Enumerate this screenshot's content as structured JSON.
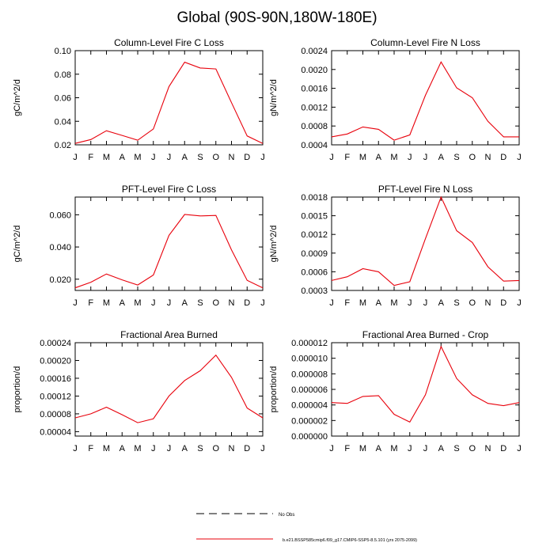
{
  "figure": {
    "title": "Global (90S-90N,180W-180E)",
    "legend": {
      "obs_label": "No Obs",
      "model_label": "b.e21.BSSP585cmip6.f09_g17.CMIP6-SSP5-8.5.101 (yrs 2075-2099)",
      "line_color": "#e8000b"
    }
  },
  "chart_data": [
    {
      "type": "line",
      "title": "Column-Level Fire C Loss",
      "ylabel": "gC/m^2/d",
      "categories": [
        "J",
        "F",
        "M",
        "A",
        "M",
        "J",
        "J",
        "A",
        "S",
        "O",
        "N",
        "D",
        "J"
      ],
      "ylim": [
        0.02,
        0.1
      ],
      "yticks": [
        0.02,
        0.04,
        0.06,
        0.08,
        0.1
      ],
      "ytick_labels": [
        "0.02",
        "0.04",
        "0.06",
        "0.08",
        "0.10"
      ],
      "series": [
        {
          "values": [
            0.0212,
            0.0245,
            0.032,
            0.028,
            0.0239,
            0.0335,
            0.0695,
            0.0902,
            0.0853,
            0.0845,
            0.0558,
            0.0275,
            0.0212
          ],
          "color": "#e8000b"
        }
      ]
    },
    {
      "type": "line",
      "title": "Column-Level Fire N Loss",
      "ylabel": "gN/m^2/d",
      "categories": [
        "J",
        "F",
        "M",
        "A",
        "M",
        "J",
        "J",
        "A",
        "S",
        "O",
        "N",
        "D",
        "J"
      ],
      "ylim": [
        0.0004,
        0.0024
      ],
      "yticks": [
        0.0004,
        0.0008,
        0.0012,
        0.0016,
        0.002,
        0.0024
      ],
      "ytick_labels": [
        "0.0004",
        "0.0008",
        "0.0012",
        "0.0016",
        "0.0020",
        "0.0024"
      ],
      "series": [
        {
          "values": [
            0.00057,
            0.00063,
            0.00078,
            0.00073,
            0.0005,
            0.00061,
            0.00145,
            0.00216,
            0.00161,
            0.0014,
            0.0009,
            0.00057,
            0.00057
          ],
          "color": "#e8000b"
        }
      ]
    },
    {
      "type": "line",
      "title": "PFT-Level Fire C Loss",
      "ylabel": "gC/m^2/d",
      "categories": [
        "J",
        "F",
        "M",
        "A",
        "M",
        "J",
        "J",
        "A",
        "S",
        "O",
        "N",
        "D",
        "J"
      ],
      "ylim": [
        0.013,
        0.071
      ],
      "yticks": [
        0.02,
        0.04,
        0.06
      ],
      "ytick_labels": [
        "0.020",
        "0.040",
        "0.060"
      ],
      "series": [
        {
          "values": [
            0.0146,
            0.0181,
            0.0232,
            0.0196,
            0.0164,
            0.0226,
            0.0472,
            0.0602,
            0.0593,
            0.0596,
            0.0382,
            0.0193,
            0.0146
          ],
          "color": "#e8000b"
        }
      ]
    },
    {
      "type": "line",
      "title": "PFT-Level Fire N Loss",
      "ylabel": "gN/m^2/d",
      "categories": [
        "J",
        "F",
        "M",
        "A",
        "M",
        "J",
        "J",
        "A",
        "S",
        "O",
        "N",
        "D",
        "J"
      ],
      "ylim": [
        0.0003,
        0.0018
      ],
      "yticks": [
        0.0003,
        0.0006,
        0.0009,
        0.0012,
        0.0015,
        0.0018
      ],
      "ytick_labels": [
        "0.0003",
        "0.0006",
        "0.0009",
        "0.0012",
        "0.0015",
        "0.0018"
      ],
      "series": [
        {
          "values": [
            0.00046,
            0.00052,
            0.00065,
            0.0006,
            0.00038,
            0.00044,
            0.00113,
            0.0018,
            0.00126,
            0.00107,
            0.00068,
            0.00045,
            0.00046
          ],
          "color": "#e8000b"
        }
      ]
    },
    {
      "type": "line",
      "title": "Fractional Area Burned",
      "ylabel": "proportion/d",
      "categories": [
        "J",
        "F",
        "M",
        "A",
        "M",
        "J",
        "J",
        "A",
        "S",
        "O",
        "N",
        "D",
        "J"
      ],
      "ylim": [
        3e-05,
        0.00024
      ],
      "yticks": [
        4e-05,
        8e-05,
        0.00012,
        0.00016,
        0.0002,
        0.00024
      ],
      "ytick_labels": [
        "0.00004",
        "0.00008",
        "0.00012",
        "0.00016",
        "0.00020",
        "0.00024"
      ],
      "series": [
        {
          "values": [
            7.1e-05,
            8e-05,
            9.5e-05,
            7.8e-05,
            6e-05,
            6.9e-05,
            0.00012,
            0.000155,
            0.000177,
            0.000212,
            0.000162,
            9.3e-05,
            7.1e-05
          ],
          "color": "#e8000b"
        }
      ]
    },
    {
      "type": "line",
      "title": "Fractional Area Burned - Crop",
      "ylabel": "proportion/d",
      "categories": [
        "J",
        "F",
        "M",
        "A",
        "M",
        "J",
        "J",
        "A",
        "S",
        "O",
        "N",
        "D",
        "J"
      ],
      "ylim": [
        0.0,
        1.2e-05
      ],
      "yticks": [
        0.0,
        2e-06,
        4e-06,
        6e-06,
        8e-06,
        1e-05,
        1.2e-05
      ],
      "ytick_labels": [
        "0.000000",
        "0.000002",
        "0.000004",
        "0.000006",
        "0.000008",
        "0.000010",
        "0.000012"
      ],
      "series": [
        {
          "values": [
            4.3e-06,
            4.2e-06,
            5.1e-06,
            5.2e-06,
            2.8e-06,
            1.8e-06,
            5.3e-06,
            1.15e-05,
            7.4e-06,
            5.3e-06,
            4.2e-06,
            3.9e-06,
            4.3e-06
          ],
          "color": "#e8000b"
        }
      ]
    }
  ]
}
